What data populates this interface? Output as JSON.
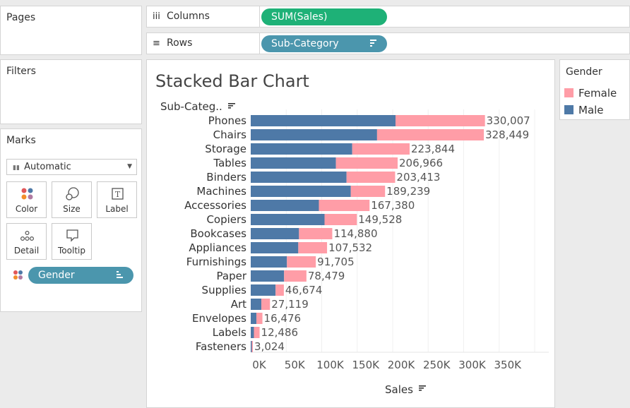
{
  "pages_panel": {
    "title": "Pages"
  },
  "filters_panel": {
    "title": "Filters"
  },
  "marks_panel": {
    "title": "Marks",
    "mark_type": "Automatic",
    "buttons": [
      {
        "label": "Color",
        "icon": "color-dots-icon"
      },
      {
        "label": "Size",
        "icon": "size-circles-icon"
      },
      {
        "label": "Label",
        "icon": "label-t-icon"
      },
      {
        "label": "Detail",
        "icon": "detail-dots-icon"
      },
      {
        "label": "Tooltip",
        "icon": "tooltip-bubble-icon"
      }
    ],
    "color_pill": "Gender"
  },
  "shelves": {
    "columns": {
      "label": "Columns",
      "pill": "SUM(Sales)"
    },
    "rows": {
      "label": "Rows",
      "pill": "Sub-Category"
    }
  },
  "legend": {
    "title": "Gender",
    "items": [
      {
        "label": "Female",
        "color": "#ff9da7"
      },
      {
        "label": "Male",
        "color": "#4e79a7"
      }
    ]
  },
  "chart_data": {
    "type": "bar",
    "orientation": "horizontal",
    "stacked": true,
    "title": "Stacked Bar Chart",
    "row_header": "Sub-Categ..",
    "xlabel": "Sales",
    "xlim": [
      0,
      400000
    ],
    "x_ticks": [
      "0K",
      "50K",
      "100K",
      "150K",
      "200K",
      "250K",
      "300K",
      "350K"
    ],
    "grid": true,
    "categories": [
      "Phones",
      "Chairs",
      "Storage",
      "Tables",
      "Binders",
      "Machines",
      "Accessories",
      "Copiers",
      "Bookcases",
      "Appliances",
      "Furnishings",
      "Paper",
      "Supplies",
      "Art",
      "Envelopes",
      "Labels",
      "Fasteners"
    ],
    "series": [
      {
        "name": "Male",
        "color": "#4e79a7",
        "values": [
          204000,
          178000,
          143000,
          120000,
          135000,
          141000,
          96000,
          104000,
          68000,
          67000,
          51000,
          47000,
          35000,
          15000,
          8000,
          4500,
          1500
        ]
      },
      {
        "name": "Female",
        "color": "#ff9da7",
        "values": [
          126007,
          150449,
          80844,
          86966,
          68413,
          48239,
          71380,
          45528,
          46880,
          40532,
          40705,
          31479,
          11674,
          12119,
          8476,
          7986,
          1524
        ]
      }
    ],
    "totals": [
      330007,
      328449,
      223844,
      206966,
      203413,
      189239,
      167380,
      149528,
      114880,
      107532,
      91705,
      78479,
      46674,
      27119,
      16476,
      12486,
      3024
    ],
    "total_labels": [
      "330,007",
      "328,449",
      "223,844",
      "206,966",
      "203,413",
      "189,239",
      "167,380",
      "149,528",
      "114,880",
      "107,532",
      "91,705",
      "78,479",
      "46,674",
      "27,119",
      "16,476",
      "12,486",
      "3,024"
    ]
  }
}
